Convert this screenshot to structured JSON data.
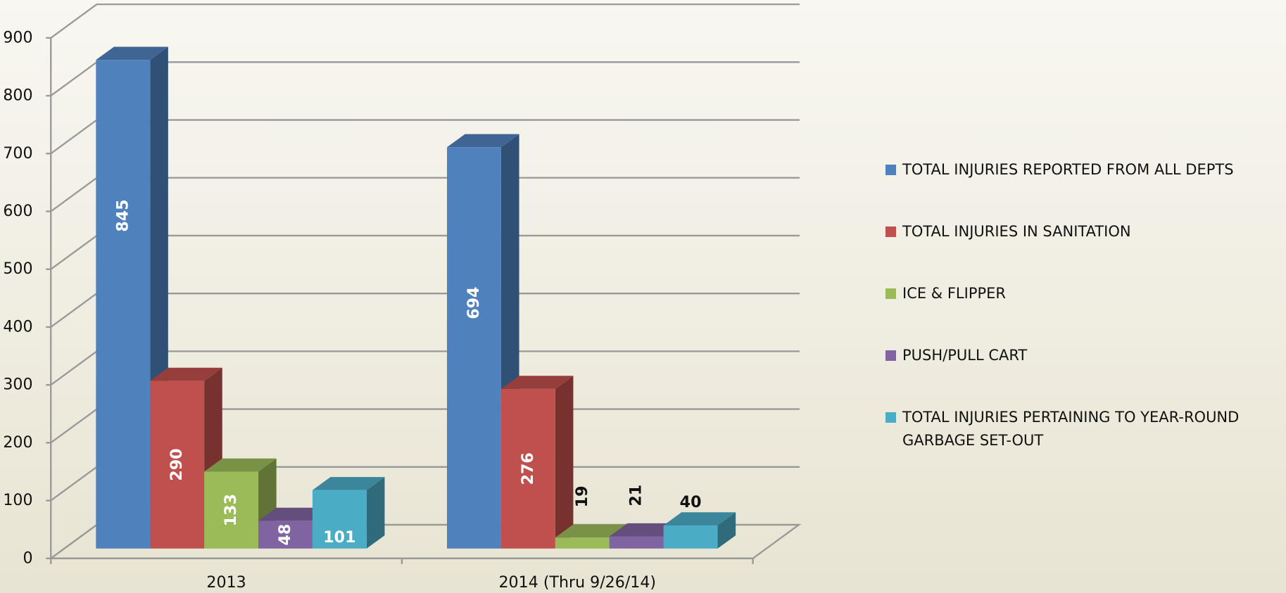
{
  "chart_data": {
    "type": "bar3d",
    "categories": [
      "2013",
      "2014 (Thru 9/26/14)"
    ],
    "series": [
      {
        "name": "TOTAL INJURIES REPORTED FROM ALL DEPTS",
        "color": "#4f81bd",
        "values": [
          845,
          694
        ]
      },
      {
        "name": "TOTAL INJURIES IN SANITATION",
        "color": "#c0504d",
        "values": [
          290,
          276
        ]
      },
      {
        "name": "ICE & FLIPPER",
        "color": "#9bbb59",
        "values": [
          133,
          19
        ]
      },
      {
        "name": "PUSH/PULL CART",
        "color": "#8064a2",
        "values": [
          48,
          21
        ]
      },
      {
        "name": "TOTAL INJURIES PERTAINING TO YEAR-ROUND GARBAGE SET-OUT",
        "color": "#4bacc6",
        "values": [
          101,
          40
        ]
      }
    ],
    "ylim": [
      0,
      900
    ],
    "yticks": [
      0,
      100,
      200,
      300,
      400,
      500,
      600,
      700,
      800,
      900
    ],
    "grid": true,
    "legend": "right"
  }
}
